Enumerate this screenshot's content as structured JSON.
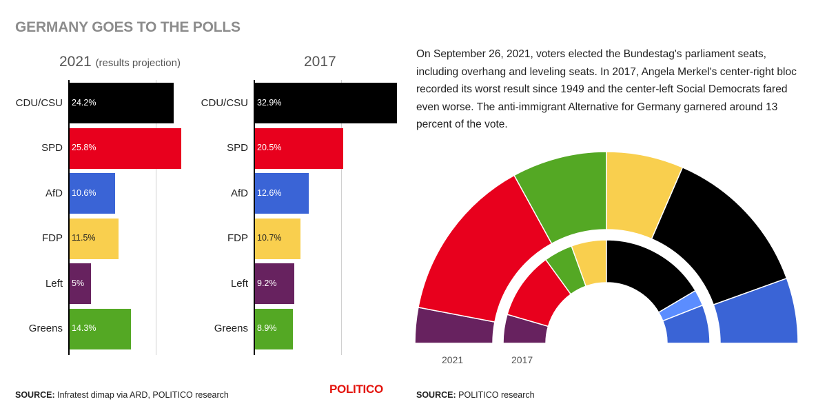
{
  "title": "GERMANY GOES TO THE POLLS",
  "description": "On September 26, 2021, voters elected the Bundestag's parliament seats, including overhang and leveling seats. In 2017, Angela Merkel's center-right bloc recorded its worst result since 1949 and the center-left Social Democrats fared even worse. The anti-immigrant Alternative for Germany garnered around 13 percent of the vote.",
  "source_left_label": "SOURCE:",
  "source_left_text": "Infratest dimap via ARD, POLITICO research",
  "source_right_label": "SOURCE:",
  "source_right_text": "POLITICO research",
  "logo": "POLITICO",
  "colors": {
    "CDU/CSU": "#000000",
    "SPD": "#e8001d",
    "AfD": "#3a64d6",
    "FDP": "#f9cf4e",
    "Left": "#67225f",
    "Greens": "#54a824",
    "AfD_light": "#5b8dff"
  },
  "chart_data": [
    {
      "type": "bar",
      "title": "2021",
      "subtitle": "(results projection)",
      "orientation": "horizontal",
      "categories": [
        "CDU/CSU",
        "SPD",
        "AfD",
        "FDP",
        "Left",
        "Greens"
      ],
      "values": [
        24.2,
        25.8,
        10.6,
        11.5,
        5,
        14.3
      ],
      "value_labels": [
        "24.2%",
        "25.8%",
        "10.6%",
        "11.5%",
        "5%",
        "14.3%"
      ],
      "xlim": [
        0,
        40
      ],
      "gridlines": [
        20
      ]
    },
    {
      "type": "bar",
      "title": "2017",
      "orientation": "horizontal",
      "categories": [
        "CDU/CSU",
        "SPD",
        "AfD",
        "FDP",
        "Left",
        "Greens"
      ],
      "values": [
        32.9,
        20.5,
        12.6,
        10.7,
        9.2,
        8.9
      ],
      "value_labels": [
        "32.9%",
        "20.5%",
        "12.6%",
        "10.7%",
        "9.2%",
        "8.9%"
      ],
      "xlim": [
        0,
        40
      ],
      "gridlines": [
        20
      ]
    },
    {
      "type": "pie",
      "variant": "hemicycle",
      "note": "Parliament seat share arcs, read left-to-right",
      "rings": [
        {
          "name": "2021",
          "segments": [
            {
              "party": "Left",
              "share": 6
            },
            {
              "party": "SPD",
              "share": 28
            },
            {
              "party": "Greens",
              "share": 16
            },
            {
              "party": "FDP",
              "share": 13
            },
            {
              "party": "CDU/CSU",
              "share": 26
            },
            {
              "party": "AfD",
              "share": 11
            }
          ]
        },
        {
          "name": "2017",
          "segments": [
            {
              "party": "Left",
              "share": 9
            },
            {
              "party": "SPD",
              "share": 21
            },
            {
              "party": "Greens",
              "share": 9
            },
            {
              "party": "FDP",
              "share": 11
            },
            {
              "party": "CDU/CSU",
              "share": 33
            },
            {
              "party": "AfD_light",
              "share": 5
            },
            {
              "party": "AfD",
              "share": 12
            }
          ]
        }
      ]
    }
  ]
}
